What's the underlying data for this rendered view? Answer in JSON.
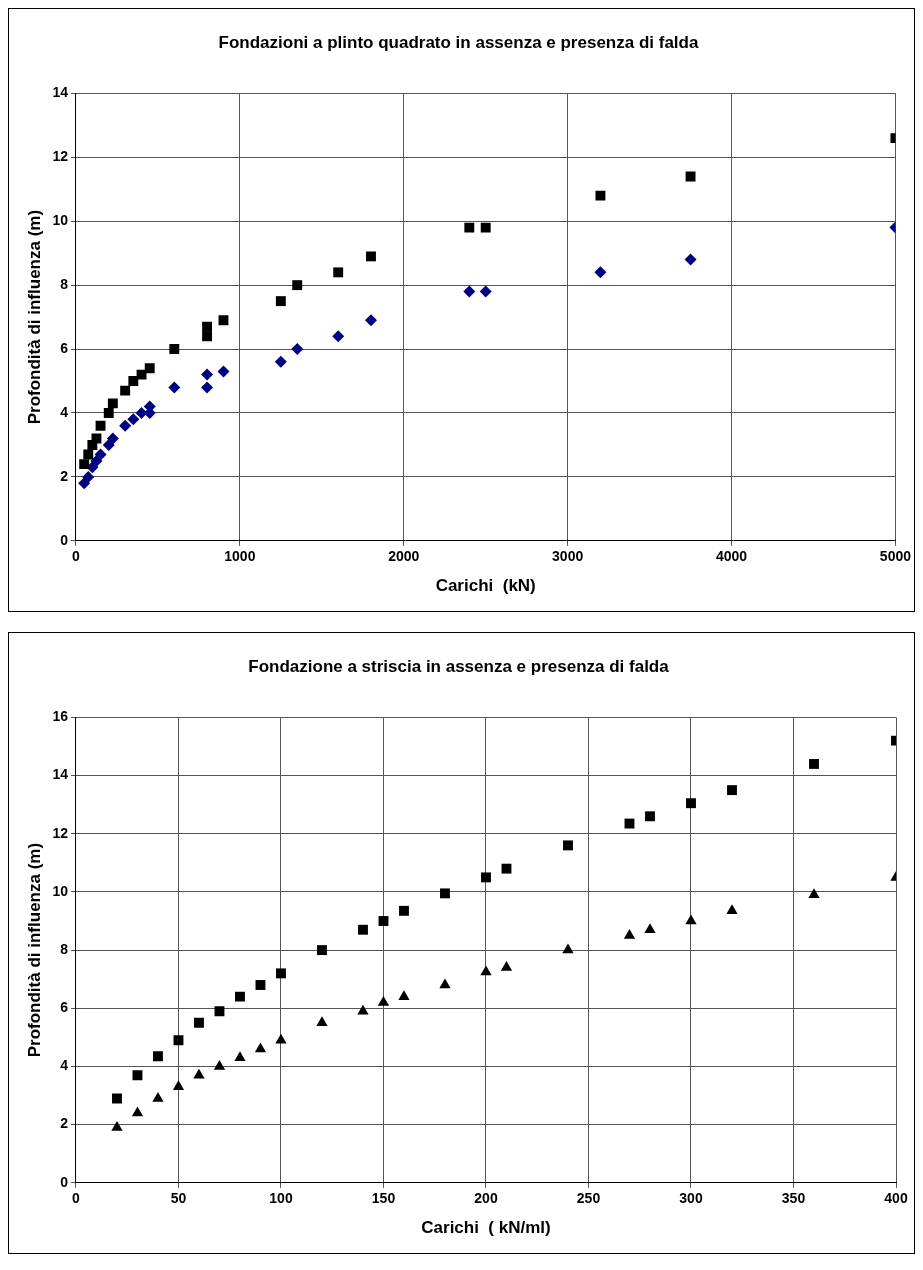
{
  "chart_data": [
    {
      "type": "scatter",
      "title": "Fondazioni a plinto quadrato in assenza e presenza di falda",
      "xlabel": "Carichi  (kN)",
      "ylabel": "Profondità di influenza (m)",
      "xlim": [
        0,
        5000
      ],
      "xticks": [
        0,
        1000,
        2000,
        3000,
        4000,
        5000
      ],
      "ylim": [
        0,
        14
      ],
      "yticks": [
        0,
        2,
        4,
        6,
        8,
        10,
        12,
        14
      ],
      "grid": true,
      "legend": false,
      "series": [
        {
          "color": "#000000",
          "marker": "square",
          "x": [
            50,
            75,
            100,
            125,
            150,
            200,
            225,
            300,
            350,
            400,
            450,
            600,
            800,
            800,
            900,
            1250,
            1350,
            1600,
            1800,
            2400,
            2500,
            3200,
            3750,
            5000
          ],
          "values": [
            2.4,
            2.7,
            3.0,
            3.2,
            3.6,
            4.0,
            4.3,
            4.7,
            5.0,
            5.2,
            5.4,
            6.0,
            6.4,
            6.7,
            6.9,
            7.5,
            8.0,
            8.4,
            8.9,
            9.8,
            9.8,
            10.8,
            11.4,
            12.6
          ]
        },
        {
          "color": "#000080",
          "marker": "diamond",
          "x": [
            50,
            75,
            100,
            125,
            150,
            200,
            225,
            300,
            350,
            400,
            450,
            450,
            600,
            800,
            800,
            900,
            1250,
            1350,
            1600,
            1800,
            2400,
            2500,
            3200,
            3750,
            5000
          ],
          "values": [
            1.8,
            2.0,
            2.3,
            2.5,
            2.7,
            3.0,
            3.2,
            3.6,
            3.8,
            4.0,
            4.0,
            4.2,
            4.8,
            4.8,
            5.2,
            5.3,
            5.6,
            6.0,
            6.4,
            6.9,
            7.8,
            7.8,
            8.4,
            8.8,
            9.8
          ]
        }
      ]
    },
    {
      "type": "scatter",
      "title": "Fondazione a striscia in assenza e presenza di falda",
      "xlabel": "Carichi  ( kN/ml)",
      "ylabel": "Profondità di influenza (m)",
      "xlim": [
        0,
        400
      ],
      "xticks": [
        0,
        50,
        100,
        150,
        200,
        250,
        300,
        350,
        400
      ],
      "ylim": [
        0,
        16
      ],
      "yticks": [
        0,
        2,
        4,
        6,
        8,
        10,
        12,
        14,
        16
      ],
      "grid": true,
      "legend": false,
      "series": [
        {
          "color": "#000000",
          "marker": "square",
          "x": [
            20,
            30,
            40,
            50,
            60,
            70,
            80,
            90,
            100,
            120,
            140,
            150,
            160,
            180,
            200,
            210,
            240,
            270,
            280,
            300,
            320,
            360,
            400
          ],
          "values": [
            2.9,
            3.7,
            4.35,
            4.9,
            5.5,
            5.9,
            6.4,
            6.8,
            7.2,
            8.0,
            8.7,
            9.0,
            9.35,
            9.95,
            10.5,
            10.8,
            11.6,
            12.35,
            12.6,
            13.05,
            13.5,
            14.4,
            15.2
          ]
        },
        {
          "color": "#000000",
          "marker": "triangle",
          "x": [
            20,
            30,
            40,
            50,
            60,
            70,
            80,
            90,
            100,
            120,
            140,
            150,
            160,
            180,
            200,
            210,
            240,
            270,
            280,
            300,
            320,
            360,
            400
          ],
          "values": [
            1.9,
            2.4,
            2.9,
            3.3,
            3.7,
            4.0,
            4.3,
            4.6,
            4.9,
            5.5,
            5.9,
            6.2,
            6.4,
            6.8,
            7.25,
            7.4,
            8.0,
            8.5,
            8.7,
            9.0,
            9.35,
            9.9,
            10.5
          ]
        }
      ]
    }
  ]
}
